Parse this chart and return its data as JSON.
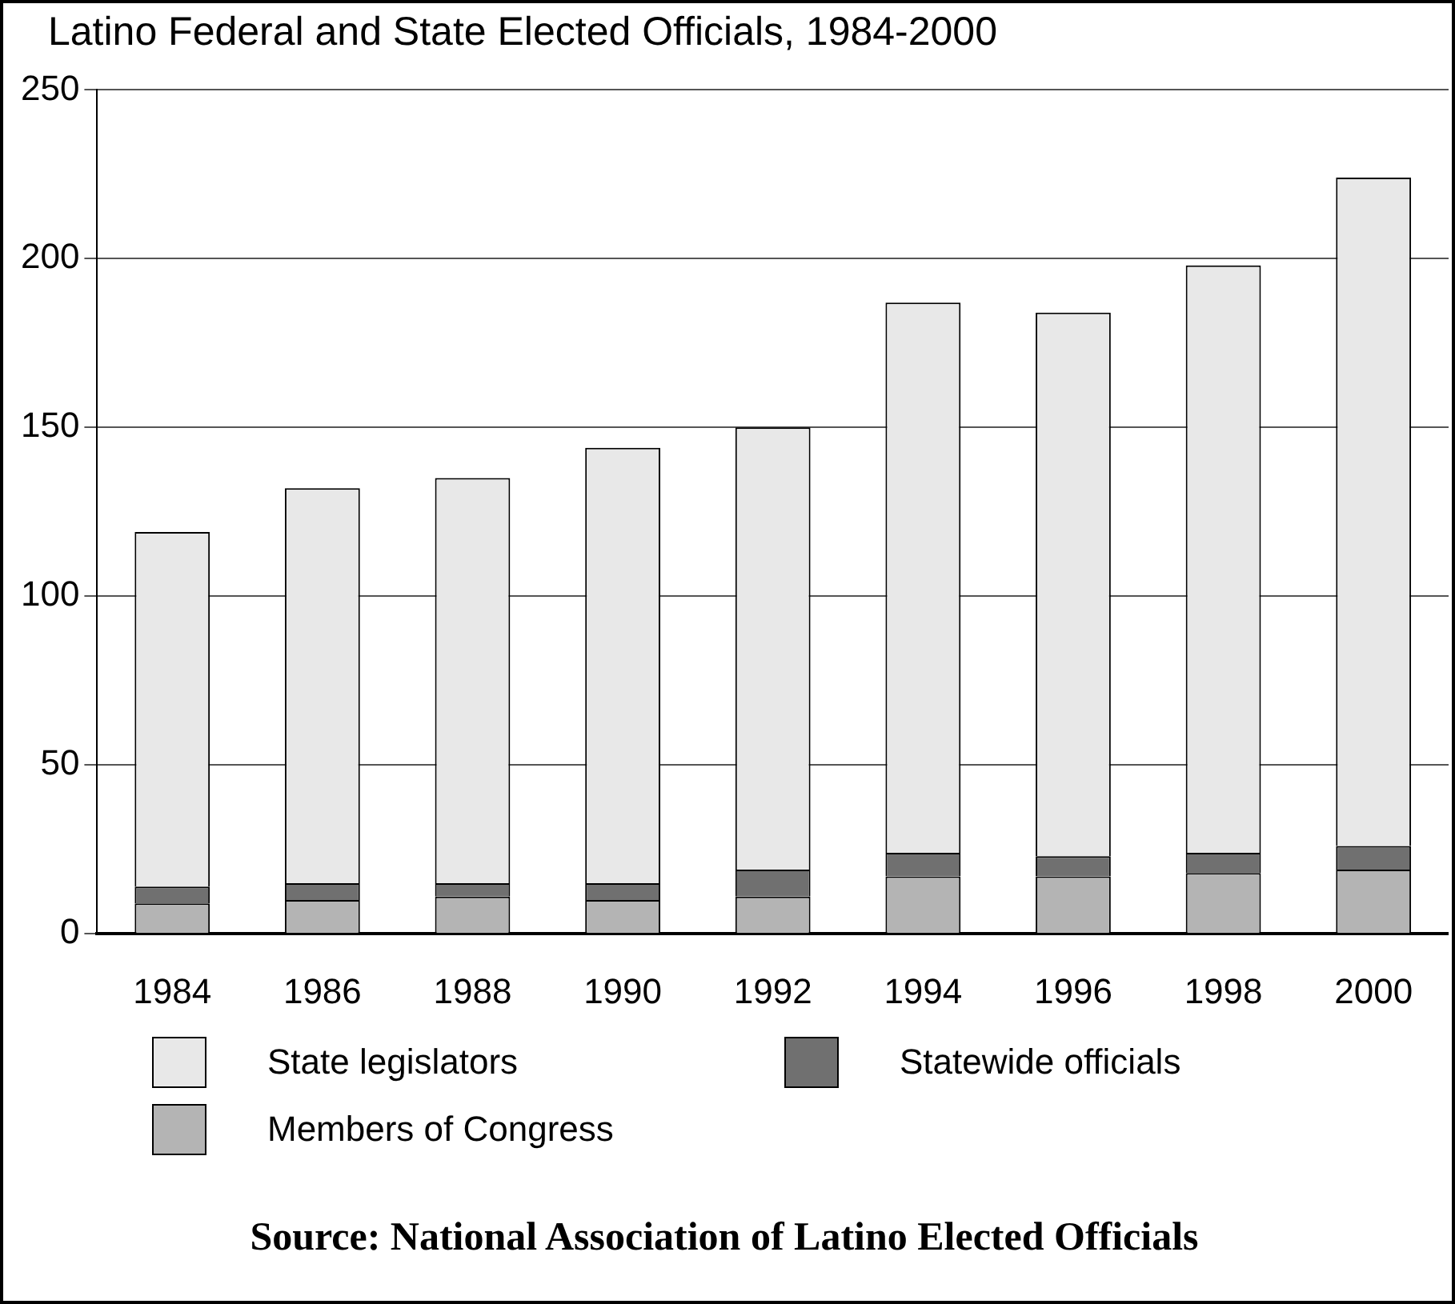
{
  "chart_data": {
    "type": "bar",
    "title": "Latino Federal and State Elected Officials, 1984-2000",
    "categories": [
      "1984",
      "1986",
      "1988",
      "1990",
      "1992",
      "1994",
      "1996",
      "1998",
      "2000"
    ],
    "stacked": true,
    "series": [
      {
        "name": "Members of Congress",
        "color": "#b4b4b4",
        "values": [
          9,
          10,
          11,
          10,
          11,
          17,
          17,
          18,
          19
        ]
      },
      {
        "name": "Statewide officials",
        "color": "#707070",
        "values": [
          5,
          5,
          4,
          5,
          8,
          7,
          6,
          6,
          7
        ]
      },
      {
        "name": "State legislators",
        "color": "#e8e8e8",
        "values": [
          105,
          117,
          120,
          129,
          131,
          163,
          161,
          174,
          198
        ]
      }
    ],
    "ylim": [
      0,
      250
    ],
    "yticks": [
      0,
      50,
      100,
      150,
      200,
      250
    ],
    "grid": "y",
    "legend": "bottom",
    "annotations": [
      "Source: National Association of Latino Elected Officials"
    ]
  }
}
